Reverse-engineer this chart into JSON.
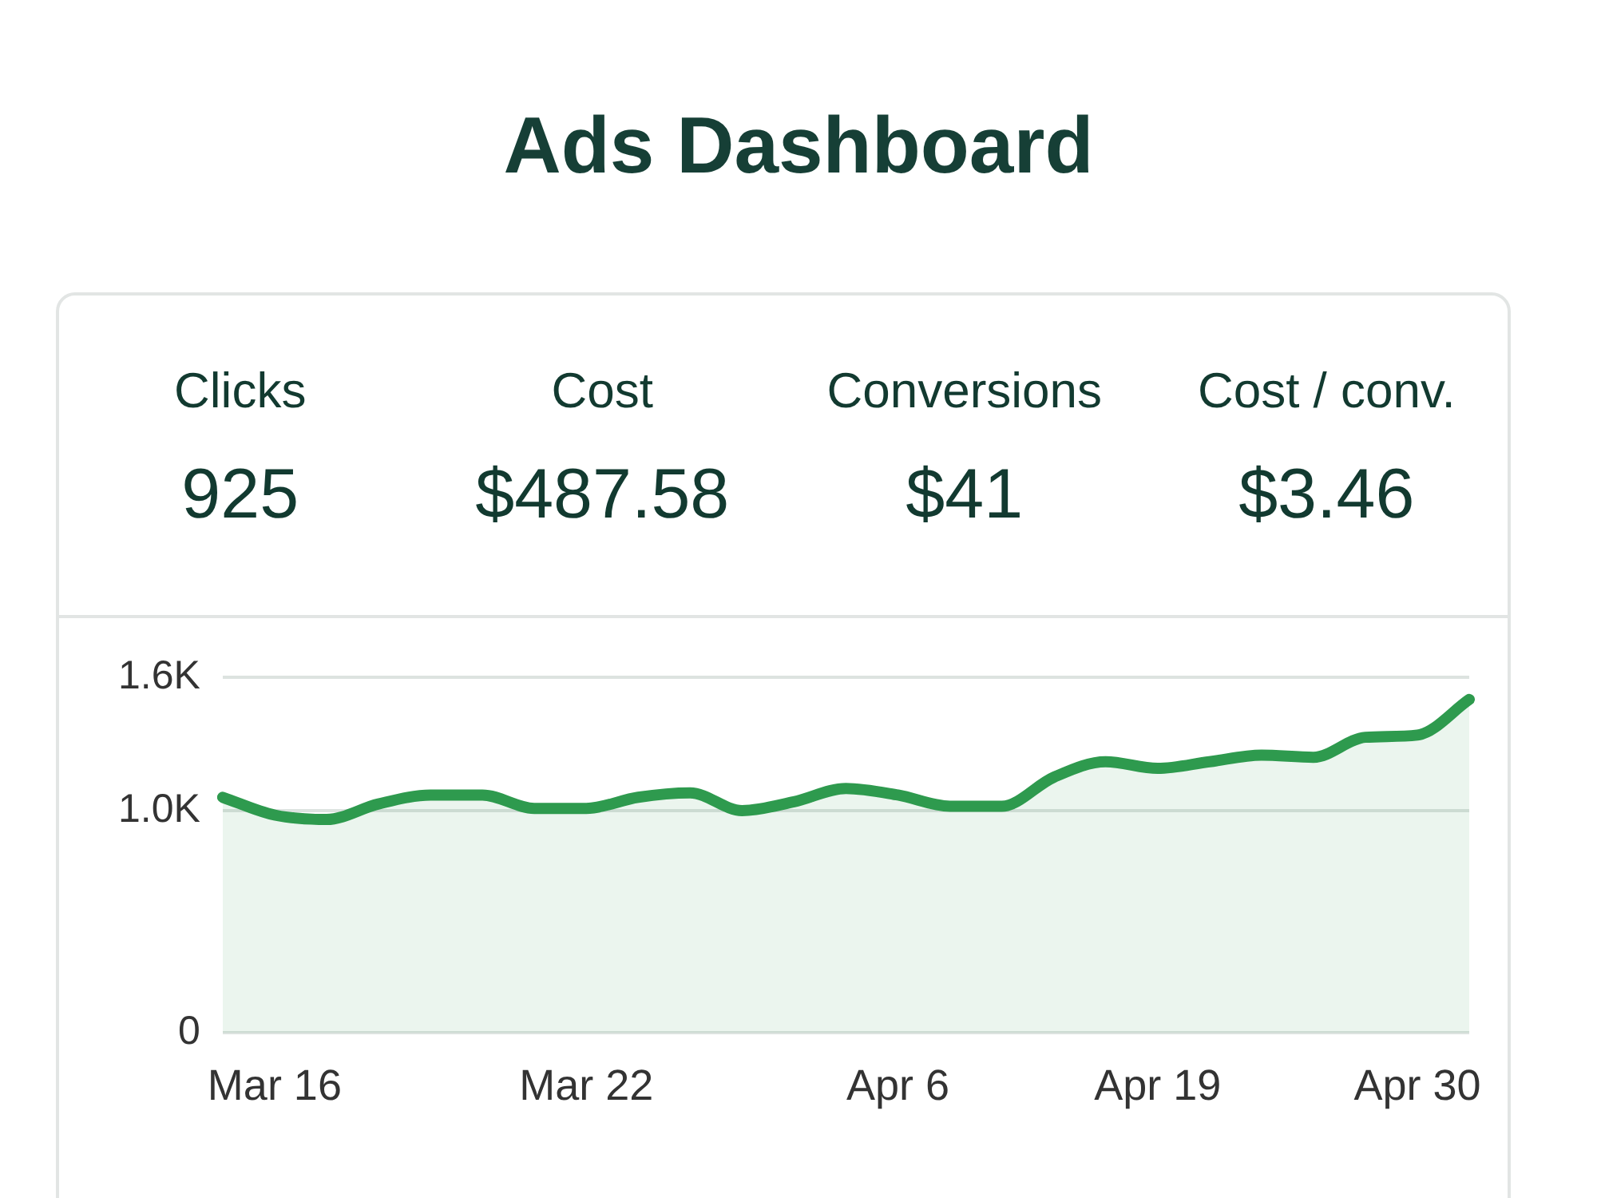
{
  "chart_data": {
    "type": "area",
    "title": "Ads Dashboard",
    "annotations": [
      "Clicks",
      "925",
      "Cost",
      "$487.58",
      "Conversions",
      "$41",
      "Cost / conv.",
      "$3.46"
    ],
    "categories": [
      null,
      "Mar 16",
      null,
      null,
      null,
      null,
      null,
      "Mar 22",
      null,
      null,
      null,
      null,
      null,
      "Apr 6",
      null,
      null,
      null,
      null,
      "Apr 19",
      null,
      null,
      null,
      null,
      "Apr 30",
      null
    ],
    "series": [
      {
        "color": "#2e9a4e",
        "values": [
          1060,
          980,
          960,
          1030,
          1070,
          1070,
          1010,
          1010,
          1060,
          1080,
          1000,
          1040,
          1100,
          1070,
          1020,
          1020,
          1150,
          1220,
          1190,
          1220,
          1250,
          1240,
          1330,
          1340,
          1500
        ]
      }
    ],
    "ylim": [
      0,
      1600
    ],
    "yticks": [
      0,
      {
        "value": 1000,
        "label": "1.0K"
      },
      {
        "value": 1600,
        "label": "1.6K"
      }
    ],
    "grid": "y",
    "legend": false,
    "marker": "none",
    "line_style": "solid"
  }
}
